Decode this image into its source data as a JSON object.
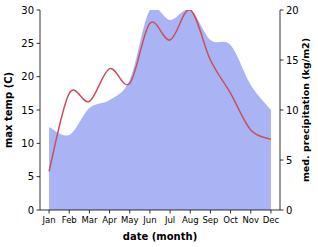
{
  "chart_data": {
    "type": "line",
    "categories": [
      "Jan",
      "Feb",
      "Mar",
      "Apr",
      "May",
      "Jun",
      "Jul",
      "Aug",
      "Sep",
      "Oct",
      "Nov",
      "Dec"
    ],
    "x_label": "date (month)",
    "y_label": "max temp (C)",
    "y2_label": "med. precipitation (kg/m2)",
    "ylim": [
      0,
      30
    ],
    "yticks": [
      0,
      5,
      10,
      15,
      20,
      25,
      30
    ],
    "y2lim": [
      0,
      20
    ],
    "y2ticks": [
      0,
      5,
      10,
      15,
      20
    ],
    "series": [
      {
        "name": "med. precipitation (kg/m2)",
        "type": "area",
        "axis": "y2",
        "color": "#aab4f5",
        "values": [
          8.3,
          7.5,
          10.2,
          11,
          13,
          20,
          19,
          20,
          17,
          16.5,
          12.5,
          10
        ]
      },
      {
        "name": "max temp (C)",
        "type": "line",
        "color": "#c8505a",
        "values": [
          5.8,
          17.5,
          16.3,
          21.2,
          19,
          28,
          25.5,
          30,
          22.5,
          17.5,
          12,
          10.6
        ]
      }
    ]
  }
}
